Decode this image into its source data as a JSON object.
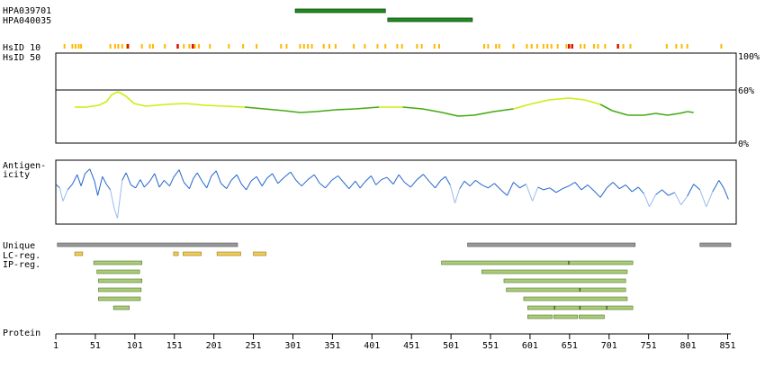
{
  "chart_data": {
    "type": "protein-feature-map",
    "protein_length": 855,
    "x_ticks": [
      1,
      51,
      101,
      151,
      201,
      251,
      301,
      351,
      401,
      451,
      501,
      551,
      601,
      651,
      701,
      751,
      801,
      851
    ],
    "antibodies": [
      {
        "name": "HPA039701",
        "start": 304,
        "end": 418,
        "color": "#228b22"
      },
      {
        "name": "HPA040035",
        "start": 421,
        "end": 528,
        "color": "#228b22"
      }
    ],
    "hsid10": {
      "label": "HsID 10",
      "orange_color": "#ffb800",
      "red_color": "#dd1100",
      "orange_positions": [
        12,
        22,
        26,
        30,
        33,
        70,
        76,
        80,
        85,
        91,
        110,
        120,
        124,
        139,
        155,
        163,
        170,
        177,
        182,
        196,
        220,
        238,
        255,
        286,
        293,
        310,
        315,
        320,
        325,
        340,
        347,
        355,
        378,
        392,
        408,
        418,
        433,
        439,
        458,
        464,
        480,
        486,
        543,
        548,
        558,
        562,
        580,
        597,
        603,
        610,
        618,
        623,
        628,
        636,
        647,
        665,
        670,
        682,
        687,
        696,
        712,
        719,
        728,
        774,
        786,
        793,
        800,
        843
      ],
      "red_positions": [
        92,
        155,
        174,
        650,
        654,
        712
      ]
    },
    "hsid50": {
      "label": "HsID 50",
      "y_ticks": [
        "100%",
        "60%",
        "0%"
      ],
      "threshold": 60,
      "high_color": "#ccee11",
      "low_color": "#44aa11",
      "points": [
        [
          25,
          40
        ],
        [
          40,
          40
        ],
        [
          55,
          42
        ],
        [
          65,
          46
        ],
        [
          72,
          54
        ],
        [
          80,
          57
        ],
        [
          90,
          52
        ],
        [
          100,
          44
        ],
        [
          115,
          41
        ],
        [
          140,
          43
        ],
        [
          165,
          44
        ],
        [
          190,
          42
        ],
        [
          215,
          41
        ],
        [
          240,
          40
        ],
        [
          265,
          38
        ],
        [
          290,
          36
        ],
        [
          310,
          34
        ],
        [
          330,
          35
        ],
        [
          355,
          37
        ],
        [
          380,
          38
        ],
        [
          410,
          40
        ],
        [
          440,
          40
        ],
        [
          465,
          38
        ],
        [
          490,
          34
        ],
        [
          510,
          30
        ],
        [
          530,
          31
        ],
        [
          555,
          35
        ],
        [
          580,
          38
        ],
        [
          600,
          43
        ],
        [
          625,
          48
        ],
        [
          650,
          50
        ],
        [
          670,
          48
        ],
        [
          690,
          43
        ],
        [
          705,
          36
        ],
        [
          725,
          31
        ],
        [
          745,
          31
        ],
        [
          760,
          33
        ],
        [
          775,
          31
        ],
        [
          790,
          33
        ],
        [
          800,
          35
        ],
        [
          808,
          34
        ]
      ]
    },
    "antigenicity": {
      "label_line1": "Antigen-",
      "label_line2": "icity",
      "line_color": "#2266cc",
      "dip_color": "#99bbee",
      "points": [
        [
          1,
          20
        ],
        [
          6,
          10
        ],
        [
          10,
          -25
        ],
        [
          16,
          5
        ],
        [
          22,
          20
        ],
        [
          28,
          45
        ],
        [
          33,
          15
        ],
        [
          38,
          48
        ],
        [
          44,
          60
        ],
        [
          50,
          28
        ],
        [
          54,
          -10
        ],
        [
          60,
          40
        ],
        [
          65,
          20
        ],
        [
          70,
          5
        ],
        [
          75,
          -45
        ],
        [
          79,
          -70
        ],
        [
          85,
          30
        ],
        [
          90,
          50
        ],
        [
          96,
          18
        ],
        [
          102,
          10
        ],
        [
          108,
          32
        ],
        [
          113,
          12
        ],
        [
          120,
          28
        ],
        [
          126,
          48
        ],
        [
          132,
          12
        ],
        [
          138,
          30
        ],
        [
          145,
          15
        ],
        [
          150,
          38
        ],
        [
          157,
          58
        ],
        [
          163,
          25
        ],
        [
          170,
          8
        ],
        [
          175,
          35
        ],
        [
          180,
          50
        ],
        [
          186,
          28
        ],
        [
          192,
          10
        ],
        [
          198,
          42
        ],
        [
          204,
          55
        ],
        [
          210,
          22
        ],
        [
          217,
          8
        ],
        [
          223,
          30
        ],
        [
          230,
          45
        ],
        [
          236,
          20
        ],
        [
          242,
          5
        ],
        [
          248,
          28
        ],
        [
          255,
          40
        ],
        [
          262,
          15
        ],
        [
          268,
          35
        ],
        [
          275,
          48
        ],
        [
          282,
          22
        ],
        [
          290,
          38
        ],
        [
          298,
          52
        ],
        [
          305,
          30
        ],
        [
          312,
          15
        ],
        [
          320,
          32
        ],
        [
          328,
          45
        ],
        [
          335,
          22
        ],
        [
          342,
          10
        ],
        [
          350,
          30
        ],
        [
          358,
          42
        ],
        [
          365,
          25
        ],
        [
          372,
          8
        ],
        [
          380,
          28
        ],
        [
          386,
          10
        ],
        [
          393,
          28
        ],
        [
          400,
          42
        ],
        [
          406,
          18
        ],
        [
          413,
          32
        ],
        [
          420,
          38
        ],
        [
          428,
          20
        ],
        [
          435,
          45
        ],
        [
          442,
          25
        ],
        [
          450,
          12
        ],
        [
          458,
          32
        ],
        [
          466,
          46
        ],
        [
          474,
          26
        ],
        [
          481,
          10
        ],
        [
          488,
          30
        ],
        [
          494,
          40
        ],
        [
          500,
          18
        ],
        [
          506,
          -30
        ],
        [
          512,
          8
        ],
        [
          518,
          28
        ],
        [
          525,
          15
        ],
        [
          532,
          30
        ],
        [
          540,
          18
        ],
        [
          548,
          10
        ],
        [
          556,
          22
        ],
        [
          564,
          5
        ],
        [
          572,
          -10
        ],
        [
          580,
          25
        ],
        [
          588,
          10
        ],
        [
          596,
          20
        ],
        [
          604,
          -25
        ],
        [
          611,
          12
        ],
        [
          618,
          5
        ],
        [
          626,
          10
        ],
        [
          634,
          -2
        ],
        [
          642,
          8
        ],
        [
          650,
          15
        ],
        [
          658,
          25
        ],
        [
          666,
          5
        ],
        [
          674,
          18
        ],
        [
          682,
          2
        ],
        [
          690,
          -15
        ],
        [
          698,
          10
        ],
        [
          706,
          25
        ],
        [
          714,
          8
        ],
        [
          722,
          18
        ],
        [
          730,
          0
        ],
        [
          738,
          12
        ],
        [
          745,
          -5
        ],
        [
          752,
          -40
        ],
        [
          760,
          -8
        ],
        [
          768,
          5
        ],
        [
          776,
          -10
        ],
        [
          784,
          -2
        ],
        [
          792,
          -35
        ],
        [
          800,
          -12
        ],
        [
          808,
          20
        ],
        [
          816,
          5
        ],
        [
          824,
          -40
        ],
        [
          832,
          0
        ],
        [
          840,
          30
        ],
        [
          846,
          10
        ],
        [
          852,
          -20
        ]
      ]
    },
    "unique": {
      "label": "Unique",
      "color": "#999999",
      "segments": [
        [
          3,
          231
        ],
        [
          522,
          734
        ],
        [
          816,
          855
        ]
      ]
    },
    "lc_reg": {
      "label": "LC-reg.",
      "color": "#eecc55",
      "segments": [
        [
          25,
          35
        ],
        [
          150,
          156
        ],
        [
          162,
          185
        ],
        [
          205,
          235
        ],
        [
          251,
          267
        ]
      ]
    },
    "ip_reg": {
      "label": "IP-reg.",
      "color": "#aacc77",
      "rows": [
        [
          [
            49,
            110
          ],
          [
            489,
            731
          ]
        ],
        [
          [
            53,
            107
          ],
          [
            540,
            724
          ]
        ],
        [
          [
            55,
            110
          ],
          [
            568,
            722
          ]
        ],
        [
          [
            55,
            109
          ],
          [
            571,
            722
          ]
        ],
        [
          [
            55,
            108
          ],
          [
            593,
            724
          ]
        ],
        [
          [
            74,
            94
          ],
          [
            598,
            731
          ]
        ],
        [
          [
            598,
            629
          ],
          [
            631,
            661
          ],
          [
            663,
            695
          ]
        ]
      ],
      "dividers": [
        [
          0,
          650
        ],
        [
          3,
          664
        ],
        [
          5,
          632
        ],
        [
          5,
          664
        ],
        [
          5,
          698
        ]
      ]
    },
    "protein": {
      "label": "Protein"
    }
  }
}
